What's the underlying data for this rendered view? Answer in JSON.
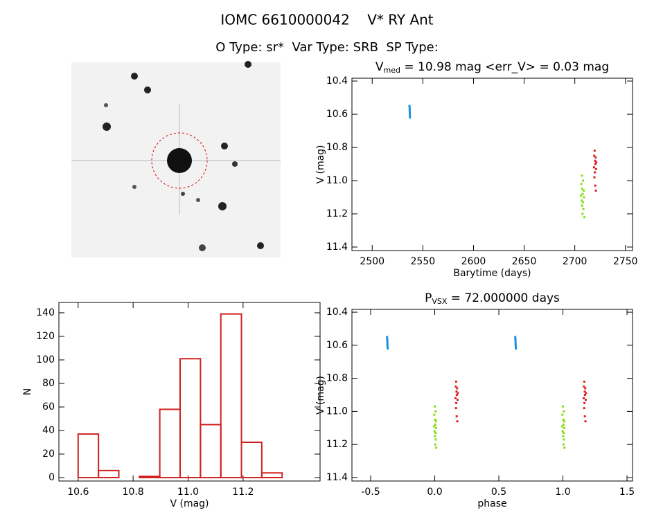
{
  "header": {
    "title": "IOMC 6610000042    V* RY Ant",
    "subtitle": "O Type: sr*  Var Type: SRB  SP Type:"
  },
  "chart_data": [
    {
      "type": "scatter",
      "title": {
        "main": "V",
        "sub": "med",
        "rest": " = 10.98 mag <err_V> = 0.03 mag"
      },
      "xlabel": "Barytime (days)",
      "ylabel": "V (mag)",
      "xlim": [
        2480,
        2757
      ],
      "xticks": [
        2500,
        2550,
        2600,
        2650,
        2700,
        2750
      ],
      "ylim": [
        10.383,
        11.421
      ],
      "y_inverted": true,
      "yticks": [
        10.4,
        10.6,
        10.8,
        {
          "value": 11,
          "label": "11.0"
        },
        11.2,
        11.4
      ],
      "series": [
        {
          "color": "#1e90dc",
          "x": [
            2536.8,
            2536.9,
            2537.0,
            2537.0,
            2537.1,
            2537.1,
            2537.2,
            2537.3
          ],
          "y": [
            10.55,
            10.56,
            10.57,
            10.58,
            10.59,
            10.6,
            10.61,
            10.62
          ]
        },
        {
          "color": "#80e010",
          "x": [
            2706.2,
            2706.5,
            2706.8,
            2707.0,
            2707.2,
            2707.4,
            2707.6,
            2707.8,
            2708.0,
            2708.2,
            2708.5,
            2708.8,
            2709.1,
            2709.5
          ],
          "y": [
            11.09,
            11.02,
            11.12,
            10.97,
            11.15,
            11.05,
            11.2,
            11.08,
            11.13,
            11.0,
            11.17,
            11.06,
            11.1,
            11.22
          ]
        },
        {
          "color": "#e02020",
          "x": [
            2719.0,
            2719.2,
            2719.4,
            2719.6,
            2719.8,
            2720.0,
            2720.2,
            2720.4,
            2720.6,
            2720.8,
            2721.0,
            2721.2
          ],
          "y": [
            10.92,
            10.85,
            10.98,
            10.82,
            10.95,
            10.88,
            11.03,
            10.9,
            10.86,
            11.06,
            10.93,
            10.89
          ]
        }
      ]
    },
    {
      "type": "scatter",
      "title": {
        "main": "P",
        "sub": "VSX",
        "rest": " = 72.000000 days"
      },
      "xlabel": "phase",
      "ylabel": "V (mag)",
      "xlim": [
        -0.646,
        1.543
      ],
      "xticks": [
        -0.5,
        {
          "value": 0,
          "label": "0.0"
        },
        0.5,
        {
          "value": 1,
          "label": "1.0"
        },
        1.5
      ],
      "ylim": [
        10.383,
        11.421
      ],
      "y_inverted": true,
      "yticks": [
        10.4,
        10.6,
        10.8,
        {
          "value": 11,
          "label": "11.0"
        },
        11.2,
        11.4
      ],
      "series": [
        {
          "color": "#1e90dc",
          "x": [
            -0.372,
            -0.371,
            -0.37,
            -0.37,
            -0.369,
            -0.369,
            -0.368,
            -0.367
          ],
          "y": [
            10.55,
            10.56,
            10.57,
            10.58,
            10.59,
            10.6,
            10.61,
            10.62
          ]
        },
        {
          "color": "#1e90dc",
          "x": [
            0.628,
            0.629,
            0.63,
            0.63,
            0.631,
            0.631,
            0.632,
            0.633
          ],
          "y": [
            10.55,
            10.56,
            10.57,
            10.58,
            10.59,
            10.6,
            10.61,
            10.62
          ]
        },
        {
          "color": "#80e010",
          "x": [
            -0.006,
            -0.004,
            -0.002,
            0.0,
            0.002,
            0.003,
            0.004,
            0.005,
            0.006,
            0.007,
            0.008,
            0.009,
            0.01,
            0.012
          ],
          "y": [
            11.09,
            11.02,
            11.12,
            10.97,
            11.15,
            11.05,
            11.2,
            11.08,
            11.13,
            11.0,
            11.17,
            11.06,
            11.1,
            11.22
          ]
        },
        {
          "color": "#80e010",
          "x": [
            0.994,
            0.996,
            0.998,
            1.0,
            1.002,
            1.003,
            1.004,
            1.005,
            1.006,
            1.007,
            1.008,
            1.009,
            1.01,
            1.012
          ],
          "y": [
            11.09,
            11.02,
            11.12,
            10.97,
            11.15,
            11.05,
            11.2,
            11.08,
            11.13,
            11.0,
            11.17,
            11.06,
            11.1,
            11.22
          ]
        },
        {
          "color": "#e02020",
          "x": [
            0.162,
            0.164,
            0.166,
            0.167,
            0.168,
            0.17,
            0.171,
            0.172,
            0.174,
            0.176,
            0.178,
            0.18
          ],
          "y": [
            10.92,
            10.85,
            10.98,
            10.82,
            10.95,
            10.88,
            11.03,
            10.9,
            10.86,
            11.06,
            10.93,
            10.89
          ]
        },
        {
          "color": "#e02020",
          "x": [
            1.162,
            1.164,
            1.166,
            1.167,
            1.168,
            1.17,
            1.171,
            1.172,
            1.174,
            1.176,
            1.178,
            1.18
          ],
          "y": [
            10.92,
            10.85,
            10.98,
            10.82,
            10.95,
            10.88,
            11.03,
            10.9,
            10.86,
            11.06,
            10.93,
            10.89
          ]
        }
      ]
    },
    {
      "type": "histogram",
      "xlabel": "V (mag)",
      "ylabel": "N",
      "color": "#d02020",
      "xlim": [
        10.53,
        11.48
      ],
      "xticks": [
        10.6,
        10.8,
        {
          "value": 11,
          "label": "11.0"
        },
        11.2
      ],
      "ylim": [
        -2.9,
        148.8
      ],
      "yticks": [
        0,
        20,
        40,
        60,
        80,
        100,
        120,
        140
      ],
      "bins": [
        10.6,
        10.674,
        10.748,
        10.823,
        10.897,
        10.971,
        11.045,
        11.119,
        11.194,
        11.268,
        11.342
      ],
      "values": [
        37,
        6,
        0,
        1,
        58,
        101,
        45,
        139,
        30,
        4
      ]
    }
  ]
}
